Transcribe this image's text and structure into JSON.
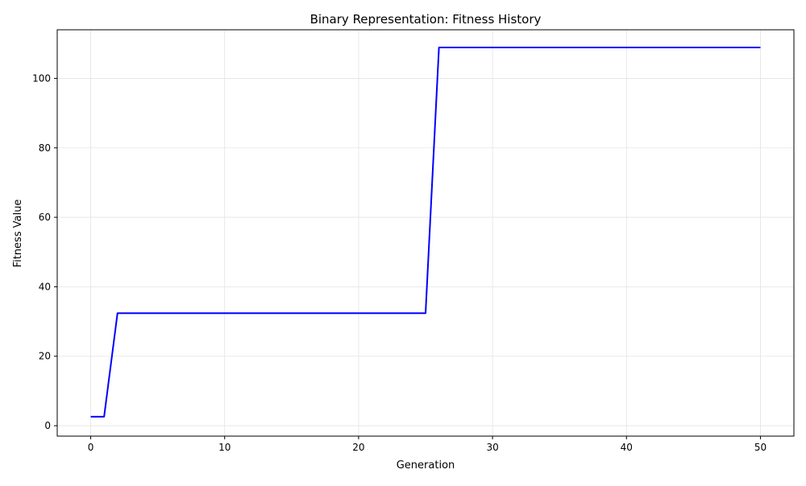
{
  "chart_data": {
    "type": "line",
    "title": "Binary Representation: Fitness History",
    "xlabel": "Generation",
    "ylabel": "Fitness Value",
    "xlim": [
      -2.5,
      52.5
    ],
    "ylim": [
      -3,
      114
    ],
    "xticks": [
      0,
      10,
      20,
      30,
      40,
      50
    ],
    "yticks": [
      0,
      20,
      40,
      60,
      80,
      100
    ],
    "grid": true,
    "series": [
      {
        "color": "#0000ff",
        "x": [
          0,
          1,
          2,
          3,
          4,
          5,
          6,
          7,
          8,
          9,
          10,
          11,
          12,
          13,
          14,
          15,
          16,
          17,
          18,
          19,
          20,
          21,
          22,
          23,
          24,
          25,
          26,
          27,
          28,
          29,
          30,
          31,
          32,
          33,
          34,
          35,
          36,
          37,
          38,
          39,
          40,
          41,
          42,
          43,
          44,
          45,
          46,
          47,
          48,
          49,
          50
        ],
        "y": [
          2.6,
          2.6,
          32.4,
          32.4,
          32.4,
          32.4,
          32.4,
          32.4,
          32.4,
          32.4,
          32.4,
          32.4,
          32.4,
          32.4,
          32.4,
          32.4,
          32.4,
          32.4,
          32.4,
          32.4,
          32.4,
          32.4,
          32.4,
          32.4,
          32.4,
          32.4,
          108.9,
          108.9,
          108.9,
          108.9,
          108.9,
          108.9,
          108.9,
          108.9,
          108.9,
          108.9,
          108.9,
          108.9,
          108.9,
          108.9,
          108.9,
          108.9,
          108.9,
          108.9,
          108.9,
          108.9,
          108.9,
          108.9,
          108.9,
          108.9,
          108.9
        ]
      }
    ]
  }
}
